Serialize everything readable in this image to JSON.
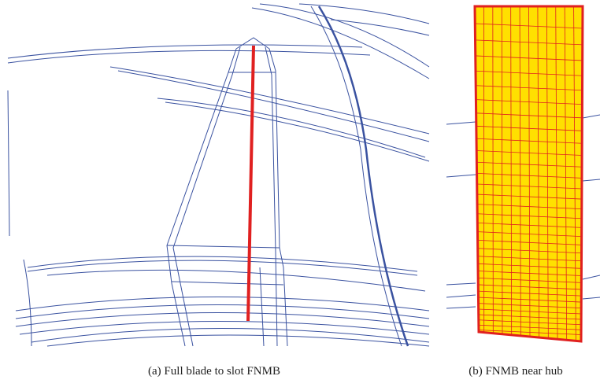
{
  "figure": {
    "panels": [
      {
        "caption": "(a)  Full blade to slot FNMB"
      },
      {
        "caption": "(b)  FNMB near hub"
      }
    ]
  }
}
